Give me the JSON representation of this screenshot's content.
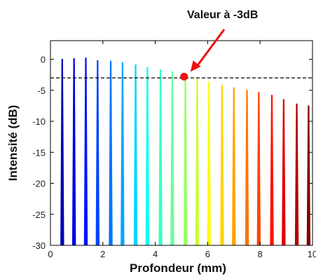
{
  "chart_data": {
    "type": "line",
    "xlabel": "Profondeur (mm)",
    "ylabel": "Intensité (dB)",
    "xlim": [
      0,
      10
    ],
    "ylim": [
      -30,
      3
    ],
    "x_ticks": [
      "0",
      "2",
      "4",
      "6",
      "8",
      "10"
    ],
    "y_ticks": [
      "0",
      "-5",
      "-10",
      "-15",
      "-20",
      "-25",
      "-30"
    ],
    "x_tick_values": [
      0,
      2,
      4,
      6,
      8,
      10
    ],
    "y_tick_values": [
      0,
      -5,
      -10,
      -15,
      -20,
      -25,
      -30
    ],
    "threshold": {
      "value": -3,
      "style": "dashed"
    },
    "annotation": {
      "text": "Valeur à -3dB",
      "x": 5.1,
      "y": -2.8
    },
    "peaks": [
      {
        "x": 0.45,
        "y": 0.0
      },
      {
        "x": 0.9,
        "y": 0.1
      },
      {
        "x": 1.35,
        "y": 0.2
      },
      {
        "x": 1.8,
        "y": -0.2
      },
      {
        "x": 2.3,
        "y": -0.3
      },
      {
        "x": 2.75,
        "y": -0.5
      },
      {
        "x": 3.25,
        "y": -0.9
      },
      {
        "x": 3.7,
        "y": -1.3
      },
      {
        "x": 4.2,
        "y": -1.7
      },
      {
        "x": 4.65,
        "y": -2.0
      },
      {
        "x": 5.15,
        "y": -2.5
      },
      {
        "x": 5.6,
        "y": -3.1
      },
      {
        "x": 6.05,
        "y": -3.6
      },
      {
        "x": 6.55,
        "y": -4.2
      },
      {
        "x": 7.0,
        "y": -4.6
      },
      {
        "x": 7.5,
        "y": -5.0
      },
      {
        "x": 7.95,
        "y": -5.3
      },
      {
        "x": 8.45,
        "y": -5.8
      },
      {
        "x": 8.9,
        "y": -6.5
      },
      {
        "x": 9.4,
        "y": -7.2
      },
      {
        "x": 9.85,
        "y": -7.5
      }
    ],
    "grid": false
  },
  "colors": {
    "threshold_line": "#000000",
    "marker": "#ee1111",
    "arrow": "#ee1111",
    "axis": "#000000"
  }
}
